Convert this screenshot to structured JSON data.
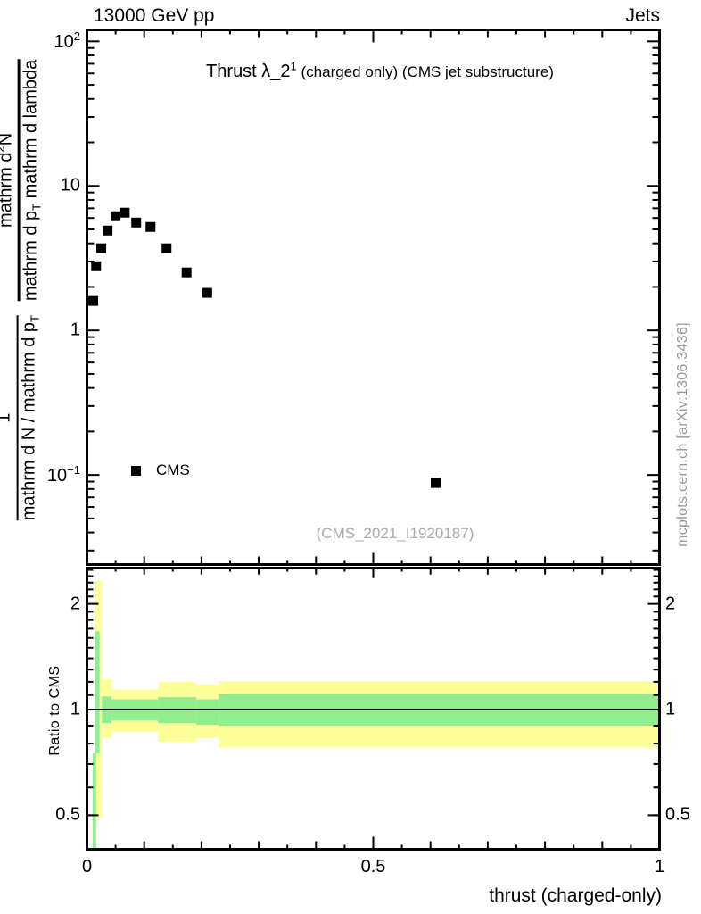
{
  "header": {
    "beam": "13000 GeV pp",
    "topic": "Jets"
  },
  "title": {
    "main": "Thrust λ_2",
    "sup": "1",
    "suffix": " (charged only) (CMS jet substructure)"
  },
  "legend": {
    "label": "CMS"
  },
  "watermark": "(CMS_2021_I1920187)",
  "side_note": "mcplots.cern.ch [arXiv:1306.3436]",
  "ratio_ylabel": "Ratio to CMS",
  "xlabel": "thrust (charged-only)",
  "ylabel": {
    "f1_num": "1",
    "f1_den": "mathrm d N / mathrm d p",
    "f1_den_sub": "T",
    "f2_num_a": "mathrm d",
    "f2_num_sup": "2",
    "f2_num_b": "N",
    "f2_den_a": "mathrm d p",
    "f2_den_sub": "T",
    "f2_den_b": " mathrm d lambda"
  },
  "colors": {
    "band_yellow": "#FFFF99",
    "band_green": "#90EE90",
    "marker": "#000000",
    "frame": "#000000"
  },
  "chart_data": {
    "type": "scatter",
    "title": "Thrust λ_2^1 (charged only) (CMS jet substructure)",
    "xlabel": "thrust (charged-only)",
    "ylabel": "1/(mathrm d N / mathrm d p_T) mathrm d^2 N / (mathrm d p_T mathrm d lambda)",
    "top_panel": {
      "yscale": "log",
      "ylim": [
        0.024,
        120
      ],
      "xlim": [
        0,
        1
      ],
      "yticks": [
        {
          "v": 100,
          "base": "10",
          "exp": "2"
        },
        {
          "v": 10,
          "base": "10",
          "exp": ""
        },
        {
          "v": 1,
          "base": "1",
          "exp": ""
        },
        {
          "v": 0.1,
          "base": "10",
          "exp": "−1"
        }
      ],
      "series": [
        {
          "name": "CMS",
          "marker": "filled-square",
          "points": [
            [
              0.011,
              1.6
            ],
            [
              0.016,
              2.78
            ],
            [
              0.025,
              3.7
            ],
            [
              0.036,
              4.91
            ],
            [
              0.05,
              6.17
            ],
            [
              0.066,
              6.53
            ],
            [
              0.086,
              5.58
            ],
            [
              0.111,
              5.2
            ],
            [
              0.139,
              3.7
            ],
            [
              0.174,
              2.52
            ],
            [
              0.21,
              1.82
            ],
            [
              0.609,
              0.088
            ]
          ]
        }
      ]
    },
    "ratio_panel": {
      "yscale": "log",
      "ylim": [
        0.4,
        2.53
      ],
      "baseline": 1,
      "yticks": [
        {
          "v": 2,
          "label": "2"
        },
        {
          "v": 1,
          "label": "1"
        },
        {
          "v": 0.5,
          "label": "0.5"
        }
      ],
      "minor_ticks": [
        0.4,
        0.5,
        0.6,
        0.7,
        0.8,
        0.9,
        1.1,
        1.2,
        1.3,
        1.4,
        1.5,
        1.6,
        1.7,
        1.8,
        1.9,
        2.1,
        2.2,
        2.3,
        2.4,
        2.5
      ],
      "bands": [
        {
          "c": "yellow",
          "t0": 0.014,
          "t1": 0.026,
          "hi": 2.33,
          "lo": 0.49
        },
        {
          "c": "green",
          "t0": 0.014,
          "t1": 0.022,
          "hi": 1.67,
          "lo": 0.75
        },
        {
          "c": "green",
          "t0": 0.01,
          "t1": 0.016,
          "hi": 0.75,
          "lo": 0.4
        },
        {
          "c": "yellow",
          "t0": 0.026,
          "t1": 0.043,
          "hi": 1.22,
          "lo": 0.83
        },
        {
          "c": "green",
          "t0": 0.026,
          "t1": 0.043,
          "hi": 1.09,
          "lo": 0.915
        },
        {
          "c": "yellow",
          "t0": 0.043,
          "t1": 0.124,
          "hi": 1.14,
          "lo": 0.865
        },
        {
          "c": "green",
          "t0": 0.043,
          "t1": 0.124,
          "hi": 1.07,
          "lo": 0.93
        },
        {
          "c": "yellow",
          "t0": 0.124,
          "t1": 0.191,
          "hi": 1.2,
          "lo": 0.81
        },
        {
          "c": "green",
          "t0": 0.124,
          "t1": 0.191,
          "hi": 1.085,
          "lo": 0.915
        },
        {
          "c": "yellow",
          "t0": 0.191,
          "t1": 0.23,
          "hi": 1.18,
          "lo": 0.83
        },
        {
          "c": "green",
          "t0": 0.191,
          "t1": 0.23,
          "hi": 1.07,
          "lo": 0.905
        },
        {
          "c": "yellow",
          "t0": 0.23,
          "t1": 1.0,
          "hi": 1.205,
          "lo": 0.78
        },
        {
          "c": "green",
          "t0": 0.23,
          "t1": 1.0,
          "hi": 1.11,
          "lo": 0.9
        }
      ]
    },
    "xticks": {
      "labeled": [
        {
          "v": 0,
          "label": "0"
        },
        {
          "v": 0.5,
          "label": "0.5"
        },
        {
          "v": 1,
          "label": "1"
        }
      ],
      "medium_step": 0.1,
      "minor_step": 0.05
    }
  }
}
